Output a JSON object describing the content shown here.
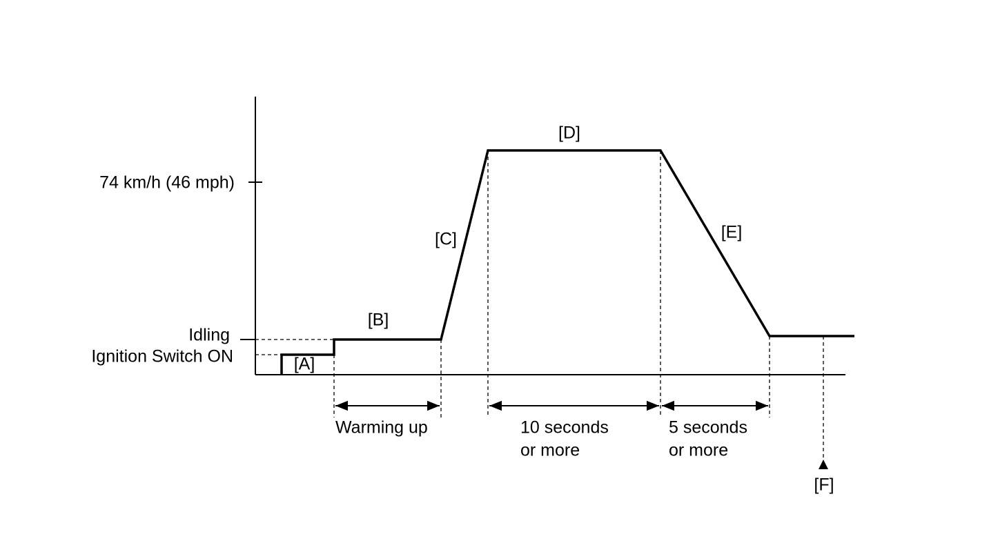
{
  "axis_labels": {
    "speed": "74 km/h (46 mph)",
    "idling": "Idling",
    "ignition": "Ignition Switch ON"
  },
  "segments": {
    "A": "[A]",
    "B": "[B]",
    "C": "[C]",
    "D": "[D]",
    "E": "[E]",
    "F": "[F]"
  },
  "intervals": [
    {
      "lines": [
        "Warming up"
      ]
    },
    {
      "lines": [
        "10 seconds",
        "or more"
      ]
    },
    {
      "lines": [
        "5 seconds",
        "or more"
      ]
    }
  ]
}
